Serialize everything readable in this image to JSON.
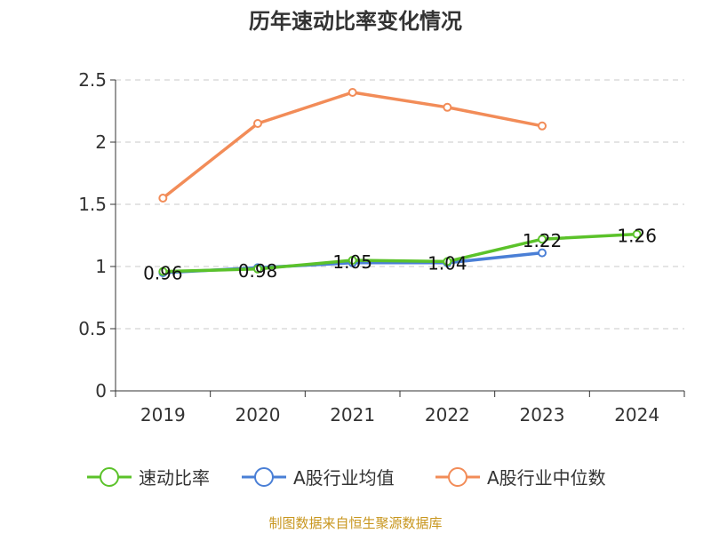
{
  "chart_data": {
    "type": "line",
    "title": "历年速动比率变化情况",
    "categories": [
      "2019",
      "2020",
      "2021",
      "2022",
      "2023",
      "2024"
    ],
    "ylim": [
      0,
      2.5
    ],
    "yticks": [
      "0",
      "0.5",
      "1",
      "1.5",
      "2",
      "2.5"
    ],
    "grid": true,
    "legend_position": "bottom",
    "series": [
      {
        "name": "速动比率",
        "color": "#5bc22a",
        "values": [
          0.96,
          0.98,
          1.05,
          1.04,
          1.22,
          1.26
        ],
        "labels": [
          "0.96",
          "0.98",
          "1.05",
          "1.04",
          "1.22",
          "1.26"
        ]
      },
      {
        "name": "A股行业均值",
        "color": "#4a7fd6",
        "values": [
          0.95,
          0.99,
          1.03,
          1.03,
          1.11,
          null
        ]
      },
      {
        "name": "A股行业中位数",
        "color": "#f28c58",
        "values": [
          1.55,
          2.15,
          2.4,
          2.28,
          2.13,
          null
        ]
      }
    ]
  },
  "source_text": "制图数据来自恒生聚源数据库"
}
